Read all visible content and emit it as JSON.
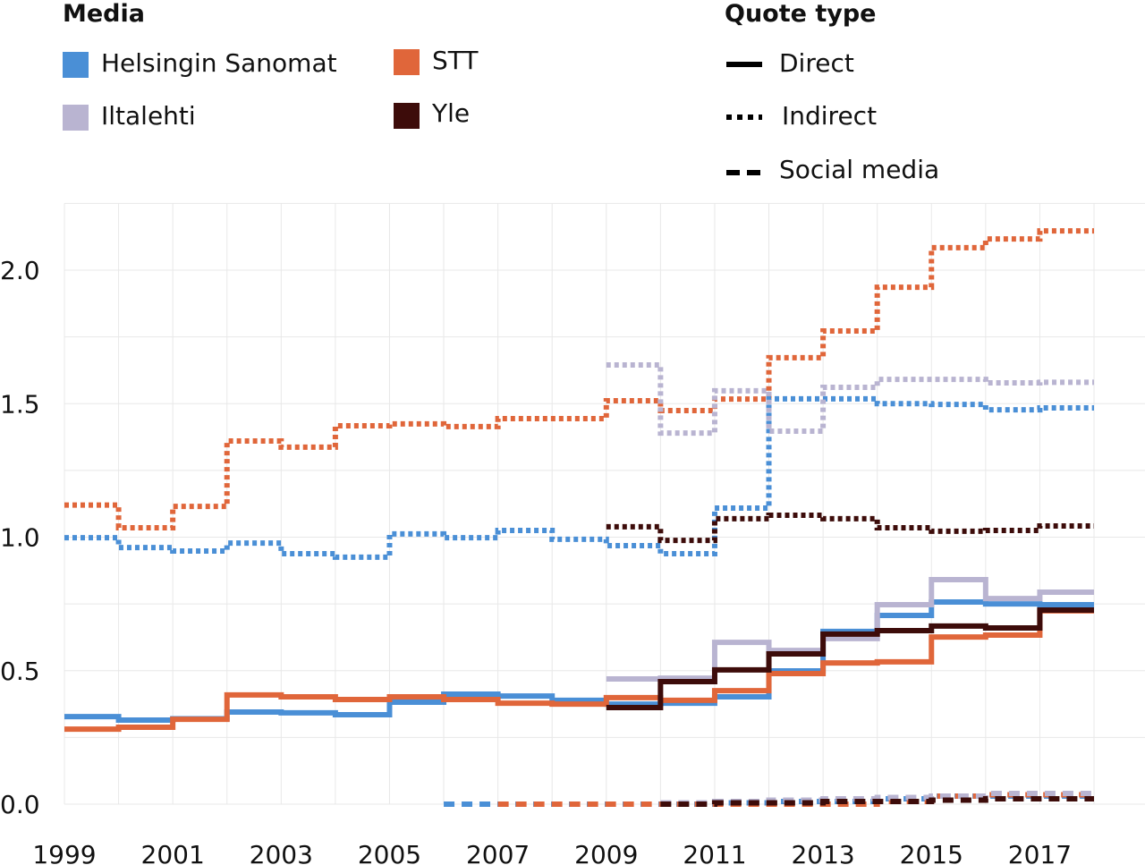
{
  "chart_data": {
    "type": "line",
    "step": "post",
    "xlim": [
      1999,
      2018
    ],
    "ylim": [
      0,
      2.25
    ],
    "x_ticks": [
      1999,
      2001,
      2003,
      2005,
      2007,
      2009,
      2011,
      2013,
      2015,
      2017
    ],
    "x_tick_labels": [
      "1999",
      "2001",
      "2003",
      "2005",
      "2007",
      "2009",
      "2011",
      "2013",
      "2015",
      "2017"
    ],
    "y_ticks": [
      0,
      0.5,
      1,
      1.5,
      2
    ],
    "y_tick_labels": [
      "0.0",
      "0.5",
      "1.0",
      "1.5",
      "2.0"
    ],
    "grid": true,
    "legend_media_title": "Media",
    "legend_quote_title": "Quote type",
    "media": [
      {
        "name": "Helsingin Sanomat",
        "color": "#4a8fd6"
      },
      {
        "name": "Iltalehti",
        "color": "#b9b4d1"
      },
      {
        "name": "STT",
        "color": "#e0663a"
      },
      {
        "name": "Yle",
        "color": "#3d0c0a"
      }
    ],
    "quote_types": [
      {
        "name": "Direct",
        "dash": "solid"
      },
      {
        "name": "Indirect",
        "dash": "dotted"
      },
      {
        "name": "Social media",
        "dash": "dashed"
      }
    ],
    "series": [
      {
        "media": "STT",
        "quote": "Indirect",
        "x_start": 1999,
        "values": [
          1.12,
          1.035,
          1.115,
          1.36,
          1.337,
          1.417,
          1.424,
          1.414,
          1.444,
          1.444,
          1.511,
          1.474,
          1.517,
          1.672,
          1.772,
          1.936,
          2.084,
          2.117,
          2.147
        ]
      },
      {
        "media": "Helsingin Sanomat",
        "quote": "Indirect",
        "x_start": 1999,
        "values": [
          0.998,
          0.961,
          0.948,
          0.978,
          0.938,
          0.925,
          1.012,
          0.998,
          1.025,
          0.992,
          0.968,
          0.938,
          1.109,
          1.518,
          1.518,
          1.5,
          1.497,
          1.477,
          1.484
        ]
      },
      {
        "media": "Iltalehti",
        "quote": "Indirect",
        "x_start": 2009,
        "values": [
          1.645,
          1.39,
          1.548,
          1.397,
          1.561,
          1.591,
          1.591,
          1.578,
          1.58
        ]
      },
      {
        "media": "Yle",
        "quote": "Indirect",
        "x_start": 2009,
        "values": [
          1.039,
          0.988,
          1.069,
          1.082,
          1.069,
          1.035,
          1.022,
          1.025,
          1.042
        ]
      },
      {
        "media": "Helsingin Sanomat",
        "quote": "Direct",
        "x_start": 1999,
        "values": [
          0.328,
          0.315,
          0.32,
          0.345,
          0.342,
          0.335,
          0.382,
          0.412,
          0.405,
          0.389,
          0.375,
          0.378,
          0.402,
          0.499,
          0.647,
          0.707,
          0.757,
          0.75,
          0.747
        ]
      },
      {
        "media": "STT",
        "quote": "Direct",
        "x_start": 1999,
        "values": [
          0.281,
          0.288,
          0.318,
          0.409,
          0.402,
          0.392,
          0.402,
          0.392,
          0.378,
          0.375,
          0.399,
          0.389,
          0.425,
          0.489,
          0.529,
          0.533,
          0.626,
          0.633,
          0.724
        ]
      },
      {
        "media": "Iltalehti",
        "quote": "Direct",
        "x_start": 2009,
        "values": [
          0.469,
          0.472,
          0.606,
          0.576,
          0.62,
          0.747,
          0.841,
          0.77,
          0.794
        ]
      },
      {
        "media": "Yle",
        "quote": "Direct",
        "x_start": 2009,
        "values": [
          0.362,
          0.459,
          0.503,
          0.563,
          0.637,
          0.65,
          0.667,
          0.66,
          0.727
        ]
      },
      {
        "media": "Helsingin Sanomat",
        "quote": "Social media",
        "x_start": 2006,
        "values": [
          0,
          0,
          0,
          0,
          0,
          0.005,
          0.01,
          0.01,
          0.02,
          0.03,
          0.03,
          0.03
        ]
      },
      {
        "media": "STT",
        "quote": "Social media",
        "x_start": 2007,
        "values": [
          0,
          0,
          0,
          0,
          0,
          0,
          0,
          0.01,
          0.03,
          0.035,
          0.035
        ]
      },
      {
        "media": "Iltalehti",
        "quote": "Social media",
        "x_start": 2010,
        "values": [
          0.005,
          0.01,
          0.015,
          0.02,
          0.025,
          0.03,
          0.04,
          0.04
        ]
      },
      {
        "media": "Yle",
        "quote": "Social media",
        "x_start": 2010,
        "values": [
          0,
          0.005,
          0.005,
          0.01,
          0.01,
          0.015,
          0.02,
          0.02
        ]
      }
    ]
  }
}
